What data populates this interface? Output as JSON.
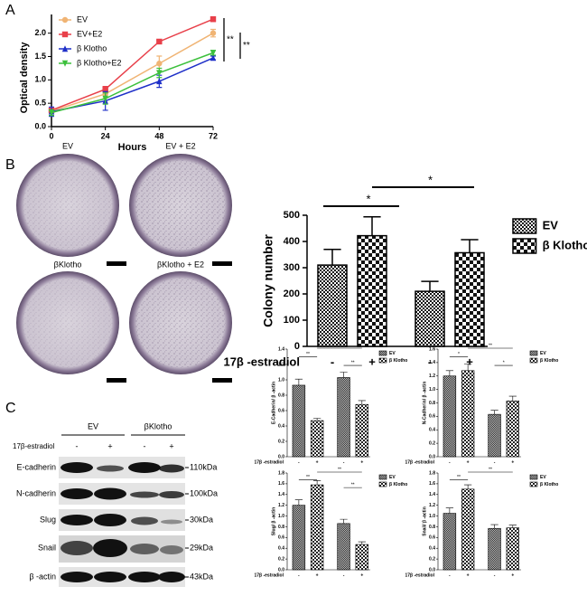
{
  "panels": [
    "A",
    "B",
    "C"
  ],
  "plates": [
    "EV",
    "EV + E2",
    "βKlotho",
    "βKlotho + E2"
  ],
  "blot": {
    "groups": [
      "EV",
      "βKlotho"
    ],
    "treatment": "17β-estradiol",
    "lanes": [
      "-",
      "+",
      "-",
      "+"
    ],
    "rows": [
      "E-cadherin",
      "N-cadherin",
      "Slug",
      "Snail",
      "β -actin"
    ],
    "sizes": [
      "110kDa",
      "100kDa",
      "30kDa",
      "29kDa",
      "43kDa"
    ]
  },
  "chart_data": [
    {
      "type": "line",
      "xlabel": "Hours",
      "ylabel": "Optical density",
      "x": [
        0,
        24,
        48,
        72
      ],
      "xlim": [
        0,
        72
      ],
      "xticks": [
        0,
        24,
        48,
        72
      ],
      "ylim": [
        0,
        2.4
      ],
      "yticks": [
        {
          "value": 0,
          "label": "0.0"
        },
        0.5,
        {
          "value": 1,
          "label": "1.0"
        },
        1.5,
        {
          "value": 2,
          "label": "2.0"
        }
      ],
      "series": [
        {
          "name": "EV",
          "color": "#f0b474",
          "marker": "circle",
          "values": [
            0.33,
            0.7,
            1.35,
            2.0
          ],
          "errors": [
            0.05,
            0.08,
            0.16,
            0.08
          ]
        },
        {
          "name": "EV+E2",
          "color": "#e8404a",
          "marker": "square",
          "values": [
            0.35,
            0.8,
            1.82,
            2.3
          ],
          "errors": [
            0.04,
            0.06,
            0.03,
            0.05
          ]
        },
        {
          "name": "β Klotho",
          "color": "#1e2fc8",
          "marker": "triangle",
          "values": [
            0.32,
            0.55,
            0.97,
            1.47
          ],
          "errors": [
            0.1,
            0.2,
            0.13,
            0.04
          ]
        },
        {
          "name": "β Klotho+E2",
          "color": "#3cc03c",
          "marker": "triangle-down",
          "values": [
            0.3,
            0.6,
            1.15,
            1.58
          ],
          "errors": [
            0.06,
            0.12,
            0.1,
            0.05
          ]
        }
      ],
      "annotations": [
        "**",
        "**"
      ]
    },
    {
      "type": "bar",
      "xlabel": "17β -estradiol",
      "ylabel": "Colony number",
      "categories": [
        "-",
        "+",
        "-",
        "+"
      ],
      "values": [
        310,
        422,
        210,
        357
      ],
      "errors": [
        60,
        72,
        38,
        50
      ],
      "bar_patterns": [
        "fine",
        "coarse",
        "fine",
        "coarse"
      ],
      "ylim": [
        0,
        500
      ],
      "yticks": [
        0,
        100,
        200,
        300,
        400,
        500
      ],
      "legend": [
        {
          "name": "EV",
          "pattern": "fine"
        },
        {
          "name": "β Klotho",
          "pattern": "coarse"
        }
      ],
      "annotations": [
        "*",
        "*"
      ]
    },
    {
      "type": "bar",
      "xlabel": "17β -estradiol",
      "ylabel": "E-Cadherin/ β -actin",
      "categories": [
        "-",
        "+",
        "-",
        "+"
      ],
      "values": [
        0.93,
        0.47,
        1.03,
        0.68
      ],
      "errors": [
        0.08,
        0.03,
        0.07,
        0.05
      ],
      "bar_patterns": [
        "fine",
        "coarse",
        "fine",
        "coarse"
      ],
      "ylim": [
        0,
        1.4
      ],
      "yticks": [
        {
          "value": 0,
          "label": "0.0"
        },
        0.2,
        0.4,
        0.6,
        0.8,
        {
          "value": 1,
          "label": "1.0"
        },
        1.2,
        1.4
      ],
      "legend": [
        {
          "name": "EV",
          "pattern": "fine"
        },
        {
          "name": "β Klotho",
          "pattern": "coarse"
        }
      ],
      "annotations": [
        "**",
        "**",
        "**"
      ]
    },
    {
      "type": "bar",
      "xlabel": "17β -estradiol",
      "ylabel": "N-Cadherin/ β -actin",
      "categories": [
        "-",
        "+",
        "-",
        "+"
      ],
      "values": [
        1.2,
        1.28,
        0.63,
        0.83
      ],
      "errors": [
        0.08,
        0.1,
        0.06,
        0.07
      ],
      "bar_patterns": [
        "fine",
        "coarse",
        "fine",
        "coarse"
      ],
      "ylim": [
        0,
        1.6
      ],
      "yticks": [
        {
          "value": 0,
          "label": "0.0"
        },
        0.2,
        0.4,
        0.6,
        0.8,
        {
          "value": 1,
          "label": "1.0"
        },
        1.2,
        1.4,
        1.6
      ],
      "legend": [
        {
          "name": "EV",
          "pattern": "fine"
        },
        {
          "name": "β Klotho",
          "pattern": "coarse"
        }
      ],
      "annotations": [
        "*",
        "**",
        "*"
      ]
    },
    {
      "type": "bar",
      "xlabel": "17β -estradiol",
      "ylabel": "Slug/ β -actin",
      "categories": [
        "-",
        "+",
        "-",
        "+"
      ],
      "values": [
        1.2,
        1.58,
        0.86,
        0.47
      ],
      "errors": [
        0.1,
        0.08,
        0.08,
        0.05
      ],
      "bar_patterns": [
        "fine",
        "coarse",
        "fine",
        "coarse"
      ],
      "ylim": [
        0,
        1.8
      ],
      "yticks": [
        {
          "value": 0,
          "label": "0.0"
        },
        0.2,
        0.4,
        0.6,
        0.8,
        {
          "value": 1,
          "label": "1.0"
        },
        1.2,
        1.4,
        1.6,
        1.8
      ],
      "legend": [
        {
          "name": "EV",
          "pattern": "fine"
        },
        {
          "name": "β Klotho",
          "pattern": "coarse"
        }
      ],
      "annotations": [
        "**",
        "**",
        "**"
      ]
    },
    {
      "type": "bar",
      "xlabel": "17β -estradiol",
      "ylabel": "Snail/ β -actin",
      "categories": [
        "-",
        "+",
        "-",
        "+"
      ],
      "values": [
        1.05,
        1.5,
        0.77,
        0.78
      ],
      "errors": [
        0.1,
        0.08,
        0.07,
        0.05
      ],
      "bar_patterns": [
        "fine",
        "coarse",
        "fine",
        "coarse"
      ],
      "ylim": [
        0,
        1.8
      ],
      "yticks": [
        {
          "value": 0,
          "label": "0.0"
        },
        0.2,
        0.4,
        0.6,
        0.8,
        {
          "value": 1,
          "label": "1.0"
        },
        1.2,
        1.4,
        1.6,
        1.8
      ],
      "legend": [
        {
          "name": "EV",
          "pattern": "fine"
        },
        {
          "name": "β Klotho",
          "pattern": "coarse"
        }
      ],
      "annotations": [
        "**",
        "**"
      ]
    }
  ]
}
